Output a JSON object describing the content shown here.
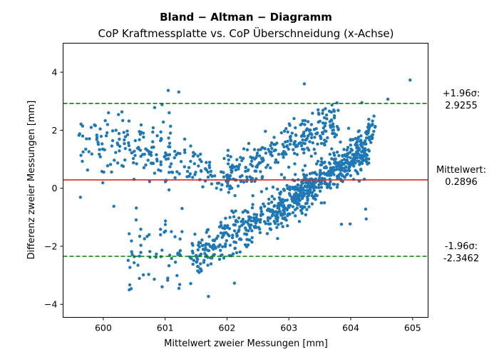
{
  "chart_data": {
    "type": "scatter",
    "title": "Bland − Altman − Diagramm",
    "subtitle": "CoP Kraftmessplatte vs. CoP Überschneidung (x-Achse)",
    "xlabel": "Mittelwert zweier Messungen [mm]",
    "ylabel": "Differenz zweier Messungen [mm]",
    "xlim": [
      599.35,
      605.25
    ],
    "ylim": [
      -4.45,
      5.0
    ],
    "xticks": [
      600,
      601,
      602,
      603,
      604,
      605
    ],
    "yticks": [
      -4,
      -2,
      0,
      2,
      4
    ],
    "grid": false,
    "colors": {
      "points": "#1f77b4",
      "mean_line": "#d62728",
      "limit_lines": "#008000"
    },
    "reference_lines": [
      {
        "name": "mean",
        "y": 0.2896,
        "label_line1": "Mittelwert:",
        "label_line2": "0.2896",
        "style": "solid"
      },
      {
        "name": "upper-limit",
        "y": 2.9255,
        "label_line1": "+1.96σ:",
        "label_line2": "2.9255",
        "style": "dashed"
      },
      {
        "name": "lower-limit",
        "y": -2.3462,
        "label_line1": "-1.96σ:",
        "label_line2": "-2.3462",
        "style": "dashed"
      }
    ],
    "clusters": [
      {
        "x_range": [
          599.6,
          601.1
        ],
        "y_center": 1.4,
        "y_spread": 0.75,
        "slope": 0.0,
        "n": 140
      },
      {
        "x_range": [
          600.4,
          601.3
        ],
        "y_center": -2.0,
        "y_spread": 0.9,
        "slope": 0.0,
        "n": 55
      },
      {
        "x_range": [
          601.0,
          602.1
        ],
        "y_center": 0.7,
        "y_spread": 0.6,
        "slope": -0.4,
        "n": 80
      },
      {
        "x_range": [
          601.4,
          604.3
        ],
        "y_center": -0.6,
        "y_spread": 0.5,
        "slope": 1.35,
        "n": 520
      },
      {
        "x_range": [
          602.0,
          603.8
        ],
        "y_center": 1.4,
        "y_spread": 0.55,
        "slope": 1.1,
        "n": 260
      },
      {
        "x_range": [
          602.8,
          604.4
        ],
        "y_center": 0.5,
        "y_spread": 0.45,
        "slope": 1.9,
        "n": 240
      }
    ],
    "points": [
      [
        599.63,
        -0.31
      ],
      [
        600.45,
        -3.46
      ],
      [
        600.42,
        -3.5
      ],
      [
        601.7,
        -3.73
      ],
      [
        604.96,
        3.73
      ],
      [
        603.25,
        3.6
      ],
      [
        601.05,
        3.37
      ],
      [
        601.22,
        3.32
      ],
      [
        604.6,
        3.07
      ],
      [
        604.18,
        2.95
      ],
      [
        600.83,
        2.78
      ],
      [
        600.95,
        2.88
      ],
      [
        604.22,
        0.31
      ],
      [
        604.24,
        -0.72
      ],
      [
        604.25,
        -1.06
      ],
      [
        603.99,
        -1.23
      ],
      [
        603.85,
        -1.24
      ],
      [
        600.17,
        -0.62
      ],
      [
        602.12,
        -3.27
      ],
      [
        601.04,
        -3.17
      ]
    ]
  }
}
